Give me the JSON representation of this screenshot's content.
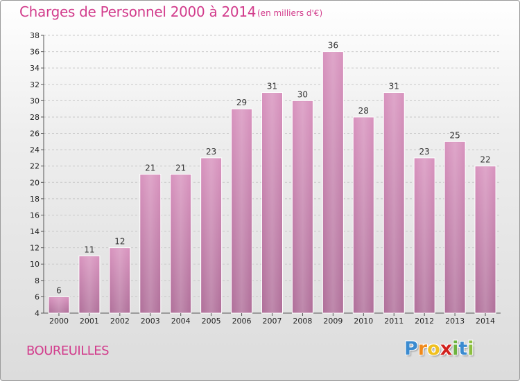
{
  "title": "Charges de Personnel 2000 à 2014",
  "subtitle": "(en milliers d'€)",
  "place": "BOUREUILLES",
  "logo": {
    "letters": [
      "P",
      "r",
      "o",
      "x",
      "i",
      "t",
      "i"
    ],
    "colors": [
      "#3b8bd0",
      "#f08a1c",
      "#f0c020",
      "#d2221e",
      "#6db33f",
      "#3b8bd0",
      "#8cbf3f"
    ]
  },
  "chart_data": {
    "type": "bar",
    "categories": [
      "2000",
      "2001",
      "2002",
      "2003",
      "2004",
      "2005",
      "2006",
      "2007",
      "2008",
      "2009",
      "2010",
      "2011",
      "2012",
      "2013",
      "2014"
    ],
    "values": [
      6,
      11,
      12,
      21,
      21,
      23,
      29,
      31,
      30,
      36,
      28,
      31,
      23,
      25,
      22
    ],
    "title": "Charges de Personnel 2000 à 2014",
    "xlabel": "",
    "ylabel": "",
    "ylim": [
      4,
      38
    ],
    "ytick_step": 2,
    "grid": true,
    "bar_color": "#d893be",
    "bar_color_dark": "#b0709a"
  }
}
